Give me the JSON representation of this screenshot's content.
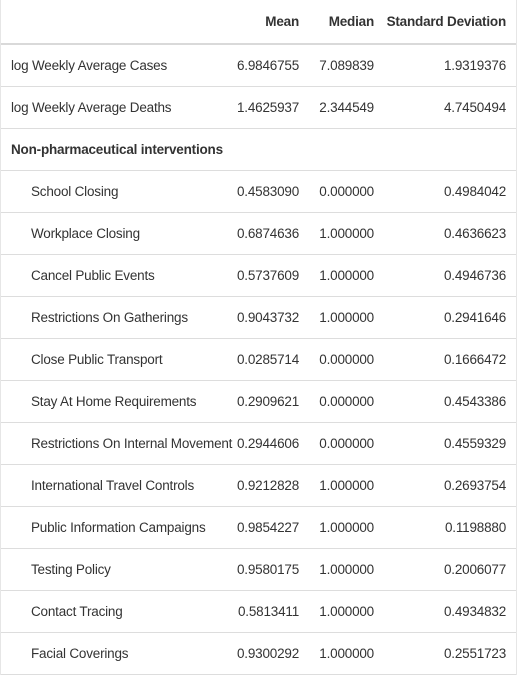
{
  "header": {
    "label": "",
    "mean": "Mean",
    "median": "Median",
    "sd": "Standard Deviation"
  },
  "rows": [
    {
      "label": "log Weekly Average Cases",
      "mean": "6.9846755",
      "median": "7.089839",
      "sd": "1.9319376"
    },
    {
      "label": "log Weekly Average Deaths",
      "mean": "1.4625937",
      "median": "2.344549",
      "sd": "4.7450494"
    }
  ],
  "group": {
    "title": "Non-pharmaceutical interventions",
    "rows": [
      {
        "label": "School Closing",
        "mean": "0.4583090",
        "median": "0.000000",
        "sd": "0.4984042"
      },
      {
        "label": "Workplace Closing",
        "mean": "0.6874636",
        "median": "1.000000",
        "sd": "0.4636623"
      },
      {
        "label": "Cancel Public Events",
        "mean": "0.5737609",
        "median": "1.000000",
        "sd": "0.4946736"
      },
      {
        "label": "Restrictions On Gatherings",
        "mean": "0.9043732",
        "median": "1.000000",
        "sd": "0.2941646"
      },
      {
        "label": "Close Public Transport",
        "mean": "0.0285714",
        "median": "0.000000",
        "sd": "0.1666472"
      },
      {
        "label": "Stay At Home Requirements",
        "mean": "0.2909621",
        "median": "0.000000",
        "sd": "0.4543386"
      },
      {
        "label": "Restrictions On Internal Movement",
        "mean": "0.2944606",
        "median": "0.000000",
        "sd": "0.4559329"
      },
      {
        "label": "International Travel Controls",
        "mean": "0.9212828",
        "median": "1.000000",
        "sd": "0.2693754"
      },
      {
        "label": "Public Information Campaigns",
        "mean": "0.9854227",
        "median": "1.000000",
        "sd": "0.1198880"
      },
      {
        "label": "Testing Policy",
        "mean": "0.9580175",
        "median": "1.000000",
        "sd": "0.2006077"
      },
      {
        "label": "Contact Tracing",
        "mean": "0.5813411",
        "median": "1.000000",
        "sd": "0.4934832"
      },
      {
        "label": "Facial Coverings",
        "mean": "0.9300292",
        "median": "1.000000",
        "sd": "0.2551723"
      }
    ]
  }
}
